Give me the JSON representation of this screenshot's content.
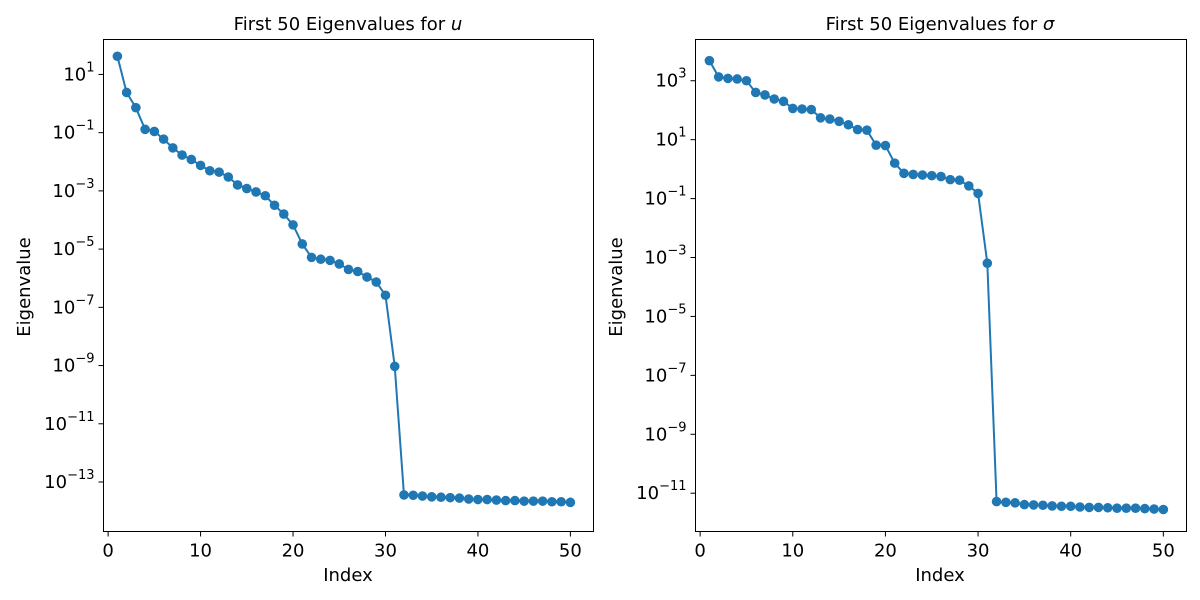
{
  "chart_data": [
    {
      "type": "line",
      "title": "First 50 Eigenvalues for ",
      "title_symbol": "u",
      "xlabel": "Index",
      "ylabel": "Eigenvalue",
      "yscale": "log",
      "xlim": [
        -0.5,
        52.5
      ],
      "ylim_exp": [
        -14.7,
        2.2
      ],
      "xticks": [
        0,
        10,
        20,
        30,
        40,
        50
      ],
      "yticks_exp": [
        1,
        -1,
        -3,
        -5,
        -7,
        -9,
        -11,
        -13
      ],
      "color": "#1f77b4",
      "marker": "circle",
      "grid": false,
      "x": [
        1,
        2,
        3,
        4,
        5,
        6,
        7,
        8,
        9,
        10,
        11,
        12,
        13,
        14,
        15,
        16,
        17,
        18,
        19,
        20,
        21,
        22,
        23,
        24,
        25,
        26,
        27,
        28,
        29,
        30,
        31,
        32,
        33,
        34,
        35,
        36,
        37,
        38,
        39,
        40,
        41,
        42,
        43,
        44,
        45,
        46,
        47,
        48,
        49,
        50
      ],
      "y": [
        42,
        2.4,
        0.72,
        0.13,
        0.11,
        0.06,
        0.03,
        0.017,
        0.012,
        0.0075,
        0.0049,
        0.0044,
        0.003,
        0.0016,
        0.0012,
        0.00092,
        0.00068,
        0.00032,
        0.00016,
        6.8e-05,
        1.5e-05,
        5.2e-06,
        4.5e-06,
        4.1e-06,
        3.1e-06,
        2e-06,
        1.7e-06,
        1.1e-06,
        7.4e-07,
        2.6e-07,
        9.4e-10,
        3.6e-14,
        3.5e-14,
        3.3e-14,
        3.1e-14,
        3e-14,
        2.9e-14,
        2.8e-14,
        2.6e-14,
        2.5e-14,
        2.5e-14,
        2.4e-14,
        2.3e-14,
        2.3e-14,
        2.2e-14,
        2.2e-14,
        2.2e-14,
        2.1e-14,
        2.1e-14,
        2e-14
      ]
    },
    {
      "type": "line",
      "title": "First 50 Eigenvalues for ",
      "title_symbol": "σ",
      "xlabel": "Index",
      "ylabel": "Eigenvalue",
      "yscale": "log",
      "xlim": [
        -0.5,
        52.5
      ],
      "ylim_exp": [
        -12.3,
        4.4
      ],
      "xticks": [
        0,
        10,
        20,
        30,
        40,
        50
      ],
      "yticks_exp": [
        3,
        1,
        -1,
        -3,
        -5,
        -7,
        -9,
        -11
      ],
      "color": "#1f77b4",
      "marker": "circle",
      "grid": false,
      "x": [
        1,
        2,
        3,
        4,
        5,
        6,
        7,
        8,
        9,
        10,
        11,
        12,
        13,
        14,
        15,
        16,
        17,
        18,
        19,
        20,
        21,
        22,
        23,
        24,
        25,
        26,
        27,
        28,
        29,
        30,
        31,
        32,
        33,
        34,
        35,
        36,
        37,
        38,
        39,
        40,
        41,
        42,
        43,
        44,
        45,
        46,
        47,
        48,
        49,
        50
      ],
      "y": [
        4800,
        1350,
        1200,
        1150,
        1000,
        400,
        330,
        240,
        200,
        115,
        110,
        105,
        55,
        50,
        42,
        32,
        22,
        21,
        6.5,
        6.3,
        1.6,
        0.72,
        0.66,
        0.63,
        0.6,
        0.56,
        0.44,
        0.42,
        0.27,
        0.15,
        0.00064,
        5.2e-12,
        4.9e-12,
        4.7e-12,
        4.1e-12,
        4e-12,
        3.9e-12,
        3.7e-12,
        3.6e-12,
        3.6e-12,
        3.4e-12,
        3.3e-12,
        3.3e-12,
        3.2e-12,
        3.1e-12,
        3.1e-12,
        3.1e-12,
        3e-12,
        2.9e-12,
        2.8e-12
      ]
    }
  ]
}
